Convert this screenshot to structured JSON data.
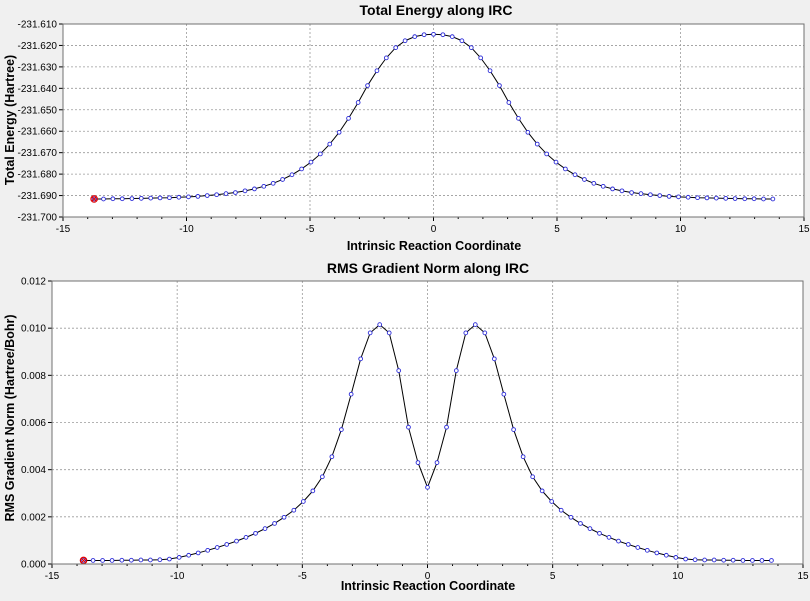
{
  "chart_data": [
    {
      "type": "line",
      "title": "Total Energy along IRC",
      "xlabel": "Intrinsic Reaction Coordinate",
      "ylabel": "Total Energy (Hartree)",
      "xlim": [
        -15,
        15
      ],
      "ylim": [
        -231.7,
        -231.61
      ],
      "xticks": [
        -15,
        -10,
        -5,
        0,
        5,
        10,
        15
      ],
      "xtick_labels": [
        "-15",
        "-10",
        "-5",
        "0",
        "5",
        "10",
        "15"
      ],
      "yticks": [
        -231.7,
        -231.69,
        -231.68,
        -231.67,
        -231.66,
        -231.65,
        -231.64,
        -231.63,
        -231.62,
        -231.61
      ],
      "ytick_labels": [
        "-231.700",
        "-231.690",
        "-231.680",
        "-231.670",
        "-231.660",
        "-231.650",
        "-231.640",
        "-231.630",
        "-231.620",
        "-231.610"
      ],
      "grid": true,
      "highlighted_point": {
        "x": -13.74,
        "y": -231.6916
      },
      "series": [
        {
          "x": [
            -13.74,
            -13.36,
            -12.98,
            -12.6,
            -12.21,
            -11.83,
            -11.45,
            -11.07,
            -10.69,
            -10.31,
            -9.92,
            -9.54,
            -9.16,
            -8.78,
            -8.4,
            -8.02,
            -7.63,
            -7.25,
            -6.87,
            -6.49,
            -6.11,
            -5.73,
            -5.34,
            -4.96,
            -4.58,
            -4.2,
            -3.82,
            -3.44,
            -3.05,
            -2.67,
            -2.29,
            -1.91,
            -1.53,
            -1.15,
            -0.76,
            -0.38,
            0,
            0.38,
            0.76,
            1.15,
            1.53,
            1.91,
            2.29,
            2.67,
            3.05,
            3.44,
            3.82,
            4.2,
            4.58,
            4.96,
            5.34,
            5.73,
            6.11,
            6.49,
            6.87,
            7.25,
            7.63,
            8.02,
            8.4,
            8.78,
            9.16,
            9.54,
            9.92,
            10.31,
            10.69,
            11.07,
            11.45,
            11.83,
            12.21,
            12.6,
            12.98,
            13.36,
            13.74
          ],
          "values": [
            -231.6916,
            -231.6916,
            -231.6915,
            -231.6915,
            -231.6914,
            -231.6913,
            -231.6912,
            -231.6911,
            -231.691,
            -231.6908,
            -231.6906,
            -231.6904,
            -231.69,
            -231.6896,
            -231.6891,
            -231.6886,
            -231.6878,
            -231.6869,
            -231.6857,
            -231.6843,
            -231.6825,
            -231.6803,
            -231.6776,
            -231.6744,
            -231.6706,
            -231.666,
            -231.6605,
            -231.654,
            -231.6466,
            -231.6387,
            -231.6318,
            -231.6258,
            -231.621,
            -231.6178,
            -231.6159,
            -231.615,
            -231.6148,
            -231.615,
            -231.6159,
            -231.6178,
            -231.621,
            -231.6258,
            -231.6318,
            -231.6387,
            -231.6466,
            -231.654,
            -231.6605,
            -231.666,
            -231.6706,
            -231.6744,
            -231.6776,
            -231.6803,
            -231.6825,
            -231.6843,
            -231.6857,
            -231.6869,
            -231.6878,
            -231.6886,
            -231.6891,
            -231.6896,
            -231.69,
            -231.6904,
            -231.6906,
            -231.6908,
            -231.691,
            -231.6911,
            -231.6912,
            -231.6913,
            -231.6914,
            -231.6915,
            -231.6915,
            -231.6916,
            -231.6916
          ]
        }
      ]
    },
    {
      "type": "line",
      "title": "RMS Gradient Norm along IRC",
      "xlabel": "Intrinsic Reaction Coordinate",
      "ylabel": "RMS Gradient Norm (Hartree/Bohr)",
      "xlim": [
        -15,
        15
      ],
      "ylim": [
        0,
        0.012
      ],
      "xticks": [
        -15,
        -10,
        -5,
        0,
        5,
        10,
        15
      ],
      "xtick_labels": [
        "-15",
        "-10",
        "-5",
        "0",
        "5",
        "10",
        "15"
      ],
      "yticks": [
        0,
        0.002,
        0.004,
        0.006,
        0.008,
        0.01,
        0.012
      ],
      "ytick_labels": [
        "0.000",
        "0.002",
        "0.004",
        "0.006",
        "0.008",
        "0.010",
        "0.012"
      ],
      "grid": true,
      "highlighted_point": {
        "x": -13.74,
        "y": 0.00015
      },
      "series": [
        {
          "x": [
            -13.74,
            -13.36,
            -12.98,
            -12.6,
            -12.21,
            -11.83,
            -11.45,
            -11.07,
            -10.69,
            -10.31,
            -9.92,
            -9.54,
            -9.16,
            -8.78,
            -8.4,
            -8.02,
            -7.63,
            -7.25,
            -6.87,
            -6.49,
            -6.11,
            -5.73,
            -5.34,
            -4.96,
            -4.58,
            -4.2,
            -3.82,
            -3.44,
            -3.05,
            -2.67,
            -2.29,
            -1.91,
            -1.53,
            -1.15,
            -0.76,
            -0.38,
            0,
            0.38,
            0.76,
            1.15,
            1.53,
            1.91,
            2.29,
            2.67,
            3.05,
            3.44,
            3.82,
            4.2,
            4.58,
            4.96,
            5.34,
            5.73,
            6.11,
            6.49,
            6.87,
            7.25,
            7.63,
            8.02,
            8.4,
            8.78,
            9.16,
            9.54,
            9.92,
            10.31,
            10.69,
            11.07,
            11.45,
            11.83,
            12.21,
            12.6,
            12.98,
            13.36,
            13.74
          ],
          "values": [
            0.00015,
            0.00015,
            0.00015,
            0.00015,
            0.00016,
            0.00016,
            0.00017,
            0.00017,
            0.00018,
            0.00021,
            0.00028,
            0.00037,
            0.00047,
            0.00058,
            0.0007,
            0.00083,
            0.00097,
            0.00113,
            0.0013,
            0.0015,
            0.00172,
            0.00198,
            0.00228,
            0.00265,
            0.0031,
            0.0037,
            0.00455,
            0.0057,
            0.0072,
            0.0087,
            0.0098,
            0.01015,
            0.0098,
            0.0082,
            0.0058,
            0.0043,
            0.00325,
            0.0043,
            0.0058,
            0.0082,
            0.0098,
            0.01015,
            0.0098,
            0.0087,
            0.0072,
            0.0057,
            0.00455,
            0.0037,
            0.0031,
            0.00265,
            0.00228,
            0.00198,
            0.00172,
            0.0015,
            0.0013,
            0.00113,
            0.00097,
            0.00083,
            0.0007,
            0.00058,
            0.00047,
            0.00037,
            0.00028,
            0.00021,
            0.00018,
            0.00017,
            0.00017,
            0.00016,
            0.00016,
            0.00015,
            0.00015,
            0.00015,
            0.00015
          ]
        }
      ]
    }
  ]
}
